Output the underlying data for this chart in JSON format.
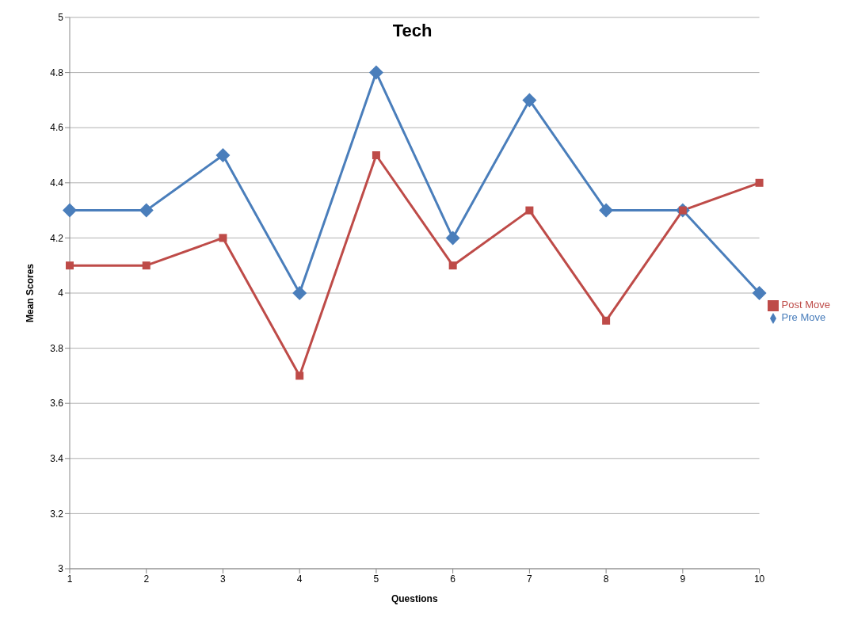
{
  "chart_data": {
    "type": "line",
    "title": "Tech",
    "xlabel": "Questions",
    "ylabel": "Mean Scores",
    "categories": [
      "1",
      "2",
      "3",
      "4",
      "5",
      "6",
      "7",
      "8",
      "9",
      "10"
    ],
    "series": [
      {
        "name": "Pre Move",
        "color": "#4a7ebb",
        "marker": "diamond",
        "values": [
          4.3,
          4.3,
          4.5,
          4.0,
          4.8,
          4.2,
          4.7,
          4.3,
          4.3,
          4.0
        ]
      },
      {
        "name": "Post Move",
        "color": "#be4b48",
        "marker": "square",
        "values": [
          4.1,
          4.1,
          4.2,
          3.7,
          4.5,
          4.1,
          4.3,
          3.9,
          4.3,
          4.4
        ]
      }
    ],
    "ylim": [
      3,
      5
    ],
    "yticks": [
      3,
      3.2,
      3.4,
      3.6,
      3.8,
      4,
      4.2,
      4.4,
      4.6,
      4.8,
      5
    ],
    "grid": "y",
    "legend": "right",
    "line_style": "solid"
  }
}
